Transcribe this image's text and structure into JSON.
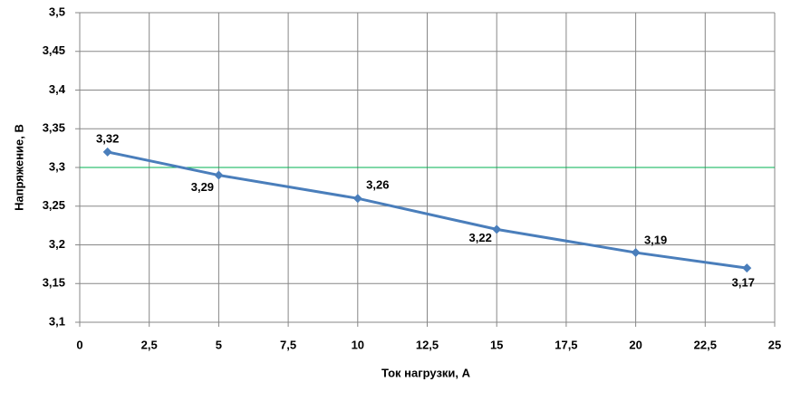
{
  "chart_data": {
    "type": "line",
    "x_label": "Ток нагрузки, А",
    "y_label": "Напряжение, В",
    "x": [
      1,
      5,
      10,
      15,
      20,
      24
    ],
    "series": [
      {
        "name": "Напряжение",
        "color": "#4a7ebb",
        "values": [
          3.32,
          3.29,
          3.26,
          3.22,
          3.19,
          3.17
        ],
        "value_labels": [
          "3,32",
          "3,29",
          "3,26",
          "3,22",
          "3,19",
          "3,17"
        ]
      }
    ],
    "reference_line": {
      "value": 3.3,
      "color": "#00b050"
    },
    "xlim": [
      0,
      25
    ],
    "xticks": [
      0,
      {
        "value": 2.5,
        "label": "2,5"
      },
      5,
      {
        "value": 7.5,
        "label": "7,5"
      },
      10,
      {
        "value": 12.5,
        "label": "12,5"
      },
      15,
      {
        "value": 17.5,
        "label": "17,5"
      },
      20,
      {
        "value": 22.5,
        "label": "22,5"
      },
      25
    ],
    "ylim": [
      3.1,
      3.5
    ],
    "yticks": [
      {
        "value": 3.1,
        "label": "3,1"
      },
      {
        "value": 3.15,
        "label": "3,15"
      },
      {
        "value": 3.2,
        "label": "3,2"
      },
      {
        "value": 3.25,
        "label": "3,25"
      },
      {
        "value": 3.3,
        "label": "3,3"
      },
      {
        "value": 3.35,
        "label": "3,35"
      },
      {
        "value": 3.4,
        "label": "3,4"
      },
      {
        "value": 3.45,
        "label": "3,45"
      },
      {
        "value": 3.5,
        "label": "3,5"
      }
    ],
    "grid": true
  }
}
